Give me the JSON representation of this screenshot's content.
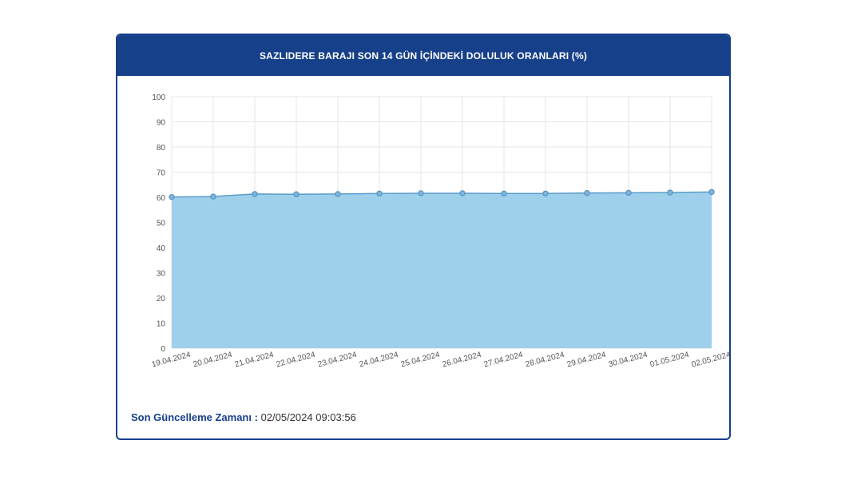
{
  "header": {
    "title": "SAZLIDERE BARAJI SON 14 GÜN İÇİNDEKİ DOLULUK ORANLARI (%)"
  },
  "footer": {
    "label": "Son Güncelleme Zamanı :",
    "value": "02/05/2024 09:03:56"
  },
  "colors": {
    "brand": "#17408b",
    "fill": "#9ed0ec",
    "line": "#5a9cc9",
    "point": "#4f8fc0"
  },
  "chart_data": {
    "type": "area",
    "title": "SAZLIDERE BARAJI SON 14 GÜN İÇİNDEKİ DOLULUK ORANLARI (%)",
    "xlabel": "",
    "ylabel": "",
    "categories": [
      "19.04.2024",
      "20.04.2024",
      "21.04.2024",
      "22.04.2024",
      "23.04.2024",
      "24.04.2024",
      "25.04.2024",
      "26.04.2024",
      "27.04.2024",
      "28.04.2024",
      "29.04.2024",
      "30.04.2024",
      "01.05.2024",
      "02.05.2024"
    ],
    "series": [
      {
        "values": [
          60.1,
          60.3,
          61.3,
          61.2,
          61.3,
          61.5,
          61.6,
          61.6,
          61.5,
          61.5,
          61.7,
          61.8,
          61.9,
          62.1
        ]
      }
    ],
    "ylim": [
      0,
      100
    ],
    "yticks": [
      0,
      10,
      20,
      30,
      40,
      50,
      60,
      70,
      80,
      90,
      100
    ],
    "grid": true,
    "legend": "none"
  }
}
